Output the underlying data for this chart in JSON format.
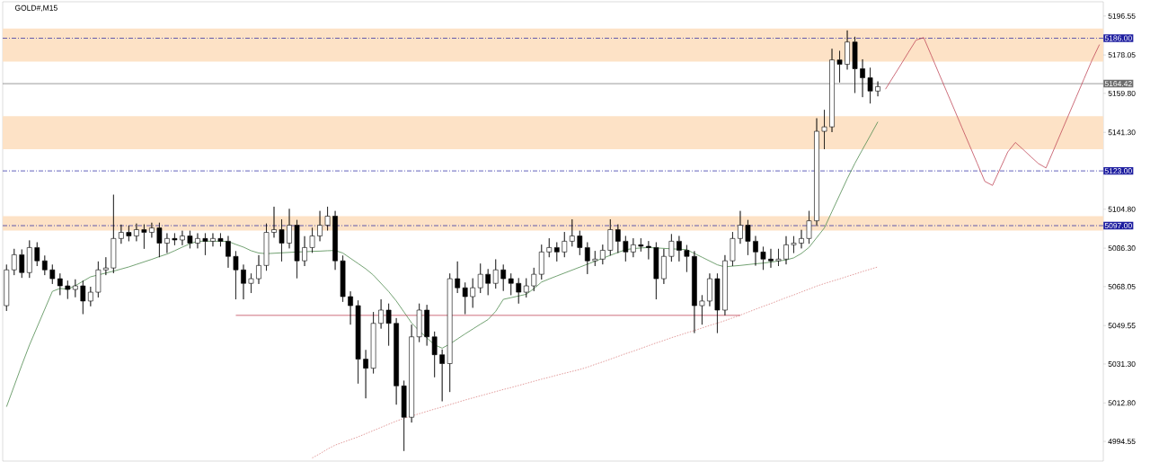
{
  "chart_data": {
    "type": "candlestick",
    "title": "GOLD#,M15",
    "categories": [
      null,
      null,
      null,
      null,
      null,
      null,
      null,
      null,
      null,
      null,
      null,
      null,
      null,
      null,
      null,
      null,
      null,
      null,
      null,
      null,
      null,
      null,
      null,
      null,
      null,
      null,
      null,
      null,
      null,
      null,
      null,
      null,
      null,
      null,
      null,
      null,
      null,
      null,
      null,
      null,
      null,
      null,
      null,
      null,
      null,
      null,
      null,
      null,
      null,
      null,
      null,
      null,
      null,
      null,
      null,
      null,
      null,
      null,
      null,
      null,
      null,
      null,
      null,
      null,
      null,
      null,
      null,
      null,
      null,
      null,
      null,
      null,
      null,
      null,
      null,
      null,
      null,
      null,
      null,
      null,
      null,
      null,
      null,
      null,
      null,
      null,
      null,
      null,
      null,
      null,
      null,
      null,
      null,
      null,
      null,
      null,
      null,
      null,
      null,
      null,
      null,
      null,
      null,
      null,
      null,
      null,
      null,
      null,
      null,
      null,
      null,
      null,
      null,
      null,
      null,
      null,
      null,
      null,
      null,
      null,
      null,
      null,
      null,
      null,
      null,
      null,
      null,
      null,
      null,
      null,
      null,
      null,
      null,
      null,
      null,
      null,
      null,
      null,
      null,
      null,
      null,
      null,
      null,
      null
    ],
    "ohlc": [
      [
        5059.0,
        5078.5,
        5056.5,
        5076.0
      ],
      [
        5076.0,
        5086.0,
        5073.5,
        5083.2
      ],
      [
        5083.2,
        5085.7,
        5072.2,
        5074.7
      ],
      [
        5074.7,
        5090.0,
        5072.2,
        5086.6
      ],
      [
        5086.6,
        5089.1,
        5077.8,
        5080.3
      ],
      [
        5080.3,
        5082.8,
        5073.5,
        5076.0
      ],
      [
        5076.0,
        5078.5,
        5069.3,
        5071.8
      ],
      [
        5071.8,
        5074.3,
        5064.0,
        5068.4
      ],
      [
        5068.4,
        5070.9,
        5062.2,
        5066.7
      ],
      [
        5066.7,
        5071.5,
        5063.0,
        5068.4
      ],
      [
        5068.4,
        5070.9,
        5055.0,
        5061.2
      ],
      [
        5061.2,
        5068.0,
        5058.7,
        5065.4
      ],
      [
        5065.4,
        5080.0,
        5062.9,
        5076.0
      ],
      [
        5076.0,
        5082.0,
        5073.5,
        5076.9
      ],
      [
        5076.9,
        5111.7,
        5074.4,
        5090.9
      ],
      [
        5090.9,
        5097.5,
        5088.4,
        5093.8
      ],
      [
        5093.8,
        5097.0,
        5089.6,
        5092.1
      ],
      [
        5092.1,
        5098.0,
        5089.6,
        5095.1
      ],
      [
        5095.1,
        5097.6,
        5086.0,
        5093.8
      ],
      [
        5093.8,
        5098.4,
        5091.3,
        5095.9
      ],
      [
        5095.9,
        5098.4,
        5082.0,
        5088.7
      ],
      [
        5088.7,
        5093.4,
        5084.0,
        5090.9
      ],
      [
        5090.9,
        5093.4,
        5087.7,
        5090.2
      ],
      [
        5090.2,
        5094.6,
        5087.7,
        5092.1
      ],
      [
        5092.1,
        5094.6,
        5086.2,
        5088.7
      ],
      [
        5088.7,
        5093.4,
        5086.2,
        5090.9
      ],
      [
        5090.9,
        5093.4,
        5083.0,
        5089.6
      ],
      [
        5089.6,
        5093.4,
        5087.1,
        5090.9
      ],
      [
        5090.9,
        5093.4,
        5087.1,
        5089.6
      ],
      [
        5089.6,
        5092.1,
        5077.0,
        5082.4
      ],
      [
        5082.4,
        5084.9,
        5062.0,
        5076.0
      ],
      [
        5076.0,
        5078.5,
        5062.0,
        5069.6
      ],
      [
        5069.6,
        5074.3,
        5065.0,
        5071.8
      ],
      [
        5071.8,
        5083.0,
        5069.3,
        5078.1
      ],
      [
        5078.1,
        5098.0,
        5075.6,
        5093.8
      ],
      [
        5093.8,
        5106.0,
        5091.3,
        5095.1
      ],
      [
        5095.1,
        5100.0,
        5080.0,
        5088.7
      ],
      [
        5088.7,
        5105.0,
        5086.2,
        5097.2
      ],
      [
        5097.2,
        5099.7,
        5072.0,
        5080.3
      ],
      [
        5080.3,
        5092.0,
        5077.8,
        5086.6
      ],
      [
        5086.6,
        5096.0,
        5084.1,
        5092.1
      ],
      [
        5092.1,
        5104.0,
        5089.6,
        5097.2
      ],
      [
        5097.2,
        5106.0,
        5094.7,
        5101.5
      ],
      [
        5101.5,
        5104.0,
        5076.0,
        5080.3
      ],
      [
        5080.3,
        5082.8,
        5060.8,
        5063.3
      ],
      [
        5063.3,
        5065.8,
        5050.0,
        5059.0
      ],
      [
        5059.0,
        5061.5,
        5022.0,
        5033.6
      ],
      [
        5033.6,
        5038.0,
        5015.0,
        5029.3
      ],
      [
        5029.3,
        5056.0,
        5026.8,
        5050.6
      ],
      [
        5050.6,
        5062.0,
        5048.1,
        5056.9
      ],
      [
        5056.9,
        5060.0,
        5040.0,
        5050.6
      ],
      [
        5050.6,
        5053.1,
        5012.0,
        5020.9
      ],
      [
        5020.9,
        5023.4,
        4990.0,
        5006.0
      ],
      [
        5006.0,
        5050.0,
        5003.5,
        5044.2
      ],
      [
        5044.2,
        5060.0,
        5041.7,
        5056.9
      ],
      [
        5056.9,
        5059.4,
        5040.0,
        5044.2
      ],
      [
        5044.2,
        5046.7,
        5025.0,
        5035.7
      ],
      [
        5035.7,
        5038.2,
        5013.6,
        5031.5
      ],
      [
        5031.5,
        5074.3,
        5018.0,
        5071.8
      ],
      [
        5071.8,
        5080.0,
        5065.0,
        5067.5
      ],
      [
        5067.5,
        5070.0,
        5055.0,
        5063.3
      ],
      [
        5063.3,
        5072.0,
        5058.0,
        5067.5
      ],
      [
        5067.5,
        5079.0,
        5065.0,
        5073.9
      ],
      [
        5073.9,
        5076.4,
        5064.0,
        5069.6
      ],
      [
        5069.6,
        5081.0,
        5067.1,
        5076.0
      ],
      [
        5076.0,
        5078.5,
        5066.0,
        5071.8
      ],
      [
        5071.8,
        5074.3,
        5064.0,
        5069.6
      ],
      [
        5069.6,
        5072.1,
        5060.0,
        5065.4
      ],
      [
        5065.4,
        5072.0,
        5062.9,
        5068.4
      ],
      [
        5068.4,
        5077.0,
        5065.9,
        5073.9
      ],
      [
        5073.9,
        5088.0,
        5071.4,
        5084.5
      ],
      [
        5084.5,
        5091.0,
        5082.0,
        5086.6
      ],
      [
        5086.6,
        5089.1,
        5080.0,
        5084.5
      ],
      [
        5084.5,
        5094.0,
        5082.0,
        5089.6
      ],
      [
        5089.6,
        5100.0,
        5087.1,
        5092.1
      ],
      [
        5092.1,
        5094.6,
        5083.0,
        5086.6
      ],
      [
        5086.6,
        5089.1,
        5074.0,
        5080.3
      ],
      [
        5080.3,
        5085.0,
        5077.8,
        5081.1
      ],
      [
        5081.1,
        5088.0,
        5078.6,
        5085.3
      ],
      [
        5085.3,
        5100.0,
        5082.8,
        5095.1
      ],
      [
        5095.1,
        5097.6,
        5084.0,
        5089.6
      ],
      [
        5089.6,
        5092.1,
        5080.0,
        5084.5
      ],
      [
        5084.5,
        5091.0,
        5082.0,
        5087.9
      ],
      [
        5087.9,
        5091.0,
        5084.7,
        5087.2
      ],
      [
        5087.2,
        5089.7,
        5081.0,
        5086.6
      ],
      [
        5086.6,
        5089.1,
        5062.0,
        5071.8
      ],
      [
        5071.8,
        5086.0,
        5069.3,
        5082.4
      ],
      [
        5082.4,
        5093.0,
        5079.9,
        5089.6
      ],
      [
        5089.6,
        5092.1,
        5080.0,
        5085.3
      ],
      [
        5085.3,
        5087.8,
        5075.0,
        5082.4
      ],
      [
        5082.4,
        5084.9,
        5046.0,
        5059.0
      ],
      [
        5059.0,
        5064.0,
        5050.0,
        5061.2
      ],
      [
        5061.2,
        5074.3,
        5058.7,
        5071.8
      ],
      [
        5071.8,
        5074.3,
        5046.0,
        5056.9
      ],
      [
        5056.9,
        5083.0,
        5054.4,
        5080.3
      ],
      [
        5080.3,
        5094.0,
        5077.8,
        5090.9
      ],
      [
        5090.9,
        5104.0,
        5088.4,
        5097.2
      ],
      [
        5097.2,
        5099.7,
        5083.0,
        5089.6
      ],
      [
        5089.6,
        5092.1,
        5078.0,
        5084.5
      ],
      [
        5084.5,
        5087.0,
        5076.0,
        5081.1
      ],
      [
        5081.1,
        5086.0,
        5077.0,
        5080.3
      ],
      [
        5080.3,
        5086.0,
        5077.8,
        5081.1
      ],
      [
        5081.1,
        5092.0,
        5078.6,
        5087.9
      ],
      [
        5087.9,
        5092.0,
        5084.0,
        5088.7
      ],
      [
        5088.7,
        5095.0,
        5086.2,
        5090.9
      ],
      [
        5090.9,
        5104.0,
        5088.4,
        5099.3
      ],
      [
        5099.3,
        5148.0,
        5096.8,
        5141.8
      ],
      [
        5141.8,
        5152.0,
        5133.3,
        5143.9
      ],
      [
        5143.9,
        5181.0,
        5141.4,
        5175.7
      ],
      [
        5175.7,
        5180.0,
        5165.0,
        5173.6
      ],
      [
        5173.6,
        5189.7,
        5171.1,
        5184.2
      ],
      [
        5184.2,
        5186.7,
        5160.0,
        5171.5
      ],
      [
        5171.5,
        5176.0,
        5158.0,
        5167.2
      ],
      [
        5167.2,
        5172.0,
        5155.0,
        5160.9
      ],
      [
        5160.9,
        5165.5,
        5158.4,
        5163.0
      ],
      null,
      null,
      null,
      null,
      null,
      null,
      null,
      null,
      null,
      null,
      null,
      null,
      null,
      null,
      null,
      null,
      null,
      null,
      null,
      null,
      null,
      null,
      null,
      null,
      null,
      null,
      null,
      null,
      null
    ],
    "series": [
      {
        "type": "line",
        "color": "#4f8a4f",
        "line_style": "solid",
        "values": [
          5011.0,
          5020.9,
          5030.8,
          5040.3,
          5048.8,
          5057.3,
          5065.8,
          5067.2,
          5066.8,
          5068.5,
          5070.6,
          5072.7,
          5073.6,
          5074.5,
          5075.4,
          5076.4,
          5077.4,
          5078.6,
          5079.8,
          5081.0,
          5082.3,
          5083.5,
          5085.1,
          5086.8,
          5088.4,
          5089.6,
          5089.6,
          5089.6,
          5089.6,
          5089.5,
          5088.1,
          5086.8,
          5085.1,
          5084.0,
          5083.7,
          5083.9,
          5084.1,
          5084.3,
          5084.5,
          5084.6,
          5084.8,
          5084.9,
          5085.1,
          5085.2,
          5084.0,
          5081.5,
          5079.0,
          5076.5,
          5073.5,
          5069.6,
          5065.7,
          5061.2,
          5056.0,
          5050.8,
          5047.0,
          5043.7,
          5040.4,
          5038.8,
          5040.8,
          5043.2,
          5045.6,
          5047.9,
          5050.2,
          5052.4,
          5056.3,
          5062.0,
          5062.8,
          5063.6,
          5064.4,
          5067.1,
          5070.2,
          5071.7,
          5073.1,
          5074.5,
          5075.9,
          5077.3,
          5078.7,
          5080.1,
          5081.5,
          5082.9,
          5084.3,
          5085.6,
          5086.1,
          5086.4,
          5086.6,
          5086.4,
          5086.2,
          5086.0,
          5085.8,
          5085.6,
          5083.8,
          5082.0,
          5080.2,
          5078.4,
          5077.4,
          5077.8,
          5078.1,
          5078.5,
          5078.9,
          5079.2,
          5079.7,
          5080.2,
          5080.7,
          5081.7,
          5083.8,
          5086.7,
          5091.3,
          5095.9,
          5103.7,
          5111.5,
          5119.3,
          5126.6,
          5133.2,
          5139.7,
          5146.3,
          null,
          null,
          null,
          null,
          null,
          null,
          null,
          null,
          null,
          null,
          null,
          null,
          null,
          null,
          null,
          null,
          null,
          null,
          null,
          null,
          null,
          null,
          null,
          null,
          null,
          null,
          null,
          null,
          null
        ]
      },
      {
        "type": "line",
        "color": "#d98080",
        "line_style": "dotted",
        "values": [
          null,
          null,
          null,
          null,
          null,
          null,
          null,
          null,
          null,
          null,
          null,
          null,
          null,
          null,
          null,
          null,
          null,
          null,
          null,
          null,
          null,
          null,
          null,
          null,
          null,
          null,
          null,
          null,
          null,
          null,
          null,
          null,
          null,
          null,
          null,
          null,
          null,
          null,
          null,
          null,
          4986.7,
          4988.7,
          4990.9,
          4992.8,
          4994.1,
          4995.4,
          4996.7,
          4998.2,
          4999.7,
          5001.2,
          5002.7,
          5004.2,
          5005.5,
          5006.6,
          5007.7,
          5008.8,
          5009.9,
          5010.9,
          5012.0,
          5013.1,
          5014.2,
          5015.2,
          5016.2,
          5017.2,
          5018.2,
          5019.2,
          5020.1,
          5021.1,
          5022.1,
          5023.1,
          5024.1,
          5025.0,
          5026.0,
          5026.9,
          5027.8,
          5028.7,
          5029.8,
          5031.1,
          5032.3,
          5033.6,
          5034.9,
          5036.2,
          5037.4,
          5038.7,
          5040.0,
          5041.3,
          5042.5,
          5043.8,
          5044.9,
          5046.1,
          5047.2,
          5048.4,
          5049.6,
          5050.7,
          5051.9,
          5053.2,
          5054.5,
          5055.9,
          5057.3,
          5058.7,
          5060.0,
          5061.4,
          5062.8,
          5064.1,
          5065.5,
          5066.9,
          5068.3,
          5069.5,
          5070.6,
          5071.7,
          5072.9,
          5074.0,
          5075.2,
          5076.3,
          5077.4,
          null,
          null,
          null,
          null,
          null,
          null,
          null,
          null,
          null,
          null,
          null,
          null,
          null,
          null,
          null,
          null,
          null,
          null,
          null,
          null,
          null,
          null,
          null,
          null,
          null,
          null,
          null,
          null,
          null
        ]
      },
      {
        "type": "line",
        "color": "#c04a5a",
        "line_style": "solid",
        "values": [
          null,
          null,
          null,
          null,
          null,
          null,
          null,
          null,
          null,
          null,
          null,
          null,
          null,
          null,
          null,
          null,
          null,
          null,
          null,
          null,
          null,
          null,
          null,
          null,
          null,
          null,
          null,
          null,
          null,
          null,
          5054.4,
          5054.4,
          5054.4,
          5054.4,
          5054.4,
          5054.4,
          5054.4,
          5054.4,
          5054.4,
          5054.4,
          5054.4,
          5054.4,
          5054.4,
          5054.4,
          5054.4,
          5054.4,
          5054.4,
          5054.4,
          5054.4,
          5054.4,
          5054.4,
          5054.4,
          5054.4,
          5054.4,
          5054.4,
          5054.4,
          5054.4,
          5054.4,
          5054.4,
          5054.4,
          5054.4,
          5054.4,
          5054.4,
          5054.4,
          5054.4,
          5054.4,
          5054.4,
          5054.4,
          5054.4,
          5054.4,
          5054.4,
          5054.4,
          5054.4,
          5054.4,
          5054.4,
          5054.4,
          5054.4,
          5054.4,
          5054.4,
          5054.4,
          5054.4,
          5054.4,
          5054.4,
          5054.4,
          5054.4,
          5054.4,
          5054.4,
          5054.4,
          5054.4,
          5054.4,
          5054.4,
          5054.4,
          5054.4,
          5054.4,
          5054.4,
          5054.4,
          5054.4,
          null,
          null,
          null,
          null,
          null,
          null,
          null,
          null,
          null,
          null,
          null,
          null,
          null,
          null,
          null,
          null,
          null,
          null,
          null,
          null,
          null,
          null,
          null,
          null,
          null,
          null,
          null,
          null,
          null,
          null,
          null,
          null,
          null,
          null,
          null,
          null,
          null,
          null,
          null,
          null,
          null,
          null,
          null,
          null,
          null,
          null,
          null
        ]
      },
      {
        "type": "line",
        "color": "#c04a5a",
        "line_style": "solid",
        "values": [
          null,
          null,
          null,
          null,
          null,
          null,
          null,
          null,
          null,
          null,
          null,
          null,
          null,
          null,
          null,
          null,
          null,
          null,
          null,
          null,
          null,
          null,
          null,
          null,
          null,
          null,
          null,
          null,
          null,
          null,
          null,
          null,
          null,
          null,
          null,
          null,
          null,
          null,
          null,
          null,
          null,
          null,
          null,
          null,
          null,
          null,
          null,
          null,
          null,
          null,
          null,
          null,
          null,
          null,
          null,
          null,
          null,
          null,
          null,
          null,
          null,
          null,
          null,
          null,
          null,
          null,
          null,
          null,
          null,
          null,
          null,
          null,
          null,
          null,
          null,
          null,
          null,
          null,
          null,
          null,
          null,
          null,
          null,
          null,
          null,
          null,
          null,
          null,
          null,
          null,
          null,
          null,
          null,
          null,
          null,
          null,
          null,
          null,
          null,
          null,
          null,
          null,
          null,
          null,
          null,
          null,
          null,
          null,
          null,
          null,
          null,
          null,
          null,
          null,
          null,
          5161.8,
          5167.6,
          5173.4,
          5179.3,
          5185.1,
          5186.3,
          5177.8,
          5169.2,
          5160.7,
          5152.2,
          5143.6,
          5135.1,
          5126.6,
          5118.0,
          5116.1,
          5124.0,
          5132.0,
          5136.5,
          5133.2,
          5129.8,
          5126.5,
          5124.4,
          5132.9,
          5141.4,
          5149.9,
          5158.4,
          5166.9,
          5175.4,
          5183.0
        ]
      }
    ],
    "ref_lines": [
      {
        "axis": "y",
        "value": 5186.0,
        "label": "5186.00",
        "color": "#1e1ea0",
        "line_style": "dashed"
      },
      {
        "axis": "y",
        "value": 5123.0,
        "label": "5123.00",
        "color": "#1e1ea0",
        "line_style": "dashed"
      },
      {
        "axis": "y",
        "value": 5097.0,
        "label": "5097.00",
        "color": "#1e1ea0",
        "line_style": "dashed"
      },
      {
        "axis": "y",
        "value": 5164.42,
        "label": "5164.42",
        "color": "#6e6e6e",
        "line_style": "solid"
      }
    ],
    "bands": [
      {
        "axis": "y",
        "from": 5174.9,
        "to": 5190.6,
        "color": "#fde2c6"
      },
      {
        "axis": "y",
        "from": 5133.3,
        "to": 5149.0,
        "color": "#fde2c6"
      },
      {
        "axis": "y",
        "from": 5094.7,
        "to": 5101.5,
        "color": "#fde2c6"
      }
    ],
    "ylim": [
      4985.2,
      5203.3
    ],
    "yticks": [
      4994.55,
      {
        "value": 5012.8,
        "label": "5012.80"
      },
      {
        "value": 5031.3,
        "label": "5031.30"
      },
      5049.55,
      5068.05,
      {
        "value": 5086.3,
        "label": "5086.30"
      },
      {
        "value": 5104.8,
        "label": "5104.80"
      },
      {
        "value": 5141.3,
        "label": "5141.30"
      },
      {
        "value": 5159.8,
        "label": "5159.80"
      },
      5178.05,
      5196.55
    ],
    "tick_labels": "y",
    "grid": false
  }
}
